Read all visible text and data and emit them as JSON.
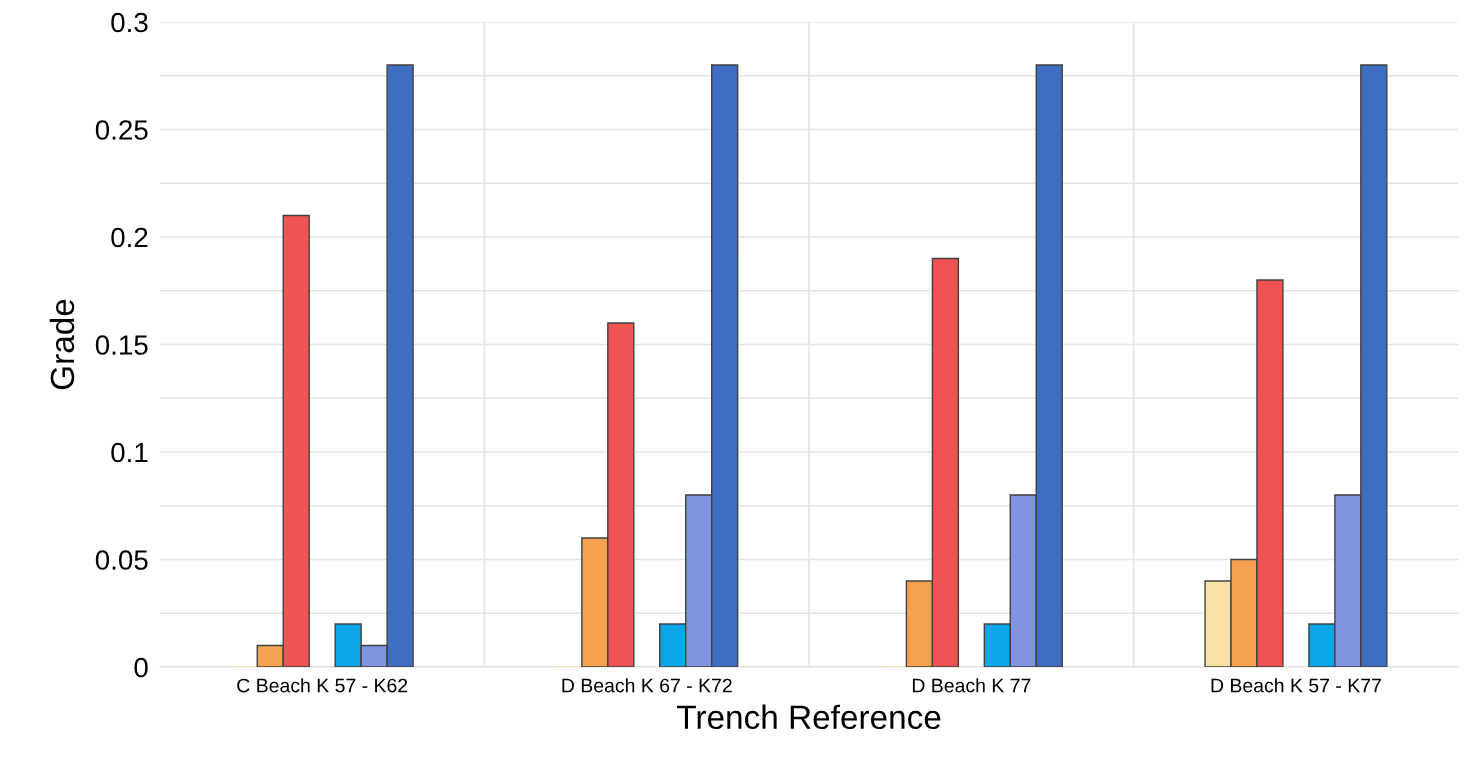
{
  "chart_data": {
    "type": "bar",
    "xlabel": "Trench Reference",
    "ylabel": "Grade",
    "categories": [
      "C Beach K 57 - K62",
      "D Beach K 67 - K72",
      "D Beach K 77",
      "D Beach K 57 - K77"
    ],
    "series": [
      {
        "color": "#f8dfa6",
        "values": [
          0,
          0,
          0,
          0.04
        ]
      },
      {
        "color": "#f4a150",
        "values": [
          0.01,
          0.06,
          0.04,
          0.05
        ]
      },
      {
        "color": "#ef5354",
        "values": [
          0.21,
          0.16,
          0.19,
          0.18
        ]
      },
      {
        "values": [
          null,
          null,
          null,
          null
        ]
      },
      {
        "color": "#0ba6e8",
        "values": [
          0.02,
          0.02,
          0.02,
          0.02
        ]
      },
      {
        "color": "#7f95e0",
        "values": [
          0.01,
          0.08,
          0.08,
          0.08
        ]
      },
      {
        "color": "#3f6dc2",
        "values": [
          0.28,
          0.28,
          0.28,
          0.28
        ]
      }
    ],
    "ylim": [
      0,
      0.3
    ],
    "yticks": [
      0,
      {
        "value": 0.025,
        "label": null
      },
      0.05,
      {
        "value": 0.075,
        "label": null
      },
      0.1,
      {
        "value": 0.125,
        "label": null
      },
      0.15,
      {
        "value": 0.175,
        "label": null
      },
      0.2,
      {
        "value": 0.225,
        "label": null
      },
      0.25,
      {
        "value": 0.275,
        "label": null
      },
      0.3
    ],
    "grid": true
  }
}
